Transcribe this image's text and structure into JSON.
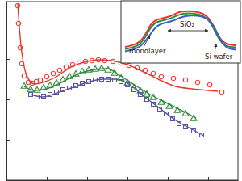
{
  "chart_data": [
    {
      "type": "scatter",
      "xlim": [
        0,
        287
      ],
      "ylim": [
        0,
        221
      ],
      "xticks": [
        0,
        50,
        100,
        150,
        200,
        250
      ],
      "yticks": [
        0,
        50,
        100,
        150,
        200
      ],
      "tick_labels": false,
      "series": [
        {
          "type": "scatter",
          "color": "#e8362d",
          "marker": "circle",
          "x": [
            14,
            15,
            17,
            19,
            22,
            27,
            32,
            37,
            42,
            50,
            58,
            66,
            74,
            82,
            90,
            98,
            106,
            114,
            122,
            132,
            142,
            152,
            162,
            172,
            182,
            192,
            207,
            222,
            237,
            252,
            267
          ],
          "values": [
            216,
            194,
            164,
            144,
            129,
            121,
            120,
            122,
            124,
            128,
            132,
            136,
            140,
            143,
            145,
            147,
            148,
            149,
            148,
            147,
            145,
            142,
            139,
            136,
            132,
            128,
            126,
            124,
            121,
            118,
            109
          ]
        },
        {
          "type": "line",
          "color": "#e8362d",
          "line_style": "solid",
          "x": [
            14,
            16,
            19,
            23,
            28,
            35,
            45,
            60,
            80,
            100,
            115,
            130,
            150,
            170,
            190,
            210,
            230,
            250,
            262
          ],
          "values": [
            218,
            190,
            158,
            136,
            124,
            119,
            121,
            127,
            140,
            147,
            149,
            148,
            143,
            134,
            124,
            116,
            113,
            111,
            110
          ]
        },
        {
          "type": "scatter",
          "color": "#2e8b3a",
          "marker": "triangle",
          "x": [
            22,
            30,
            38,
            46,
            54,
            62,
            70,
            78,
            86,
            94,
            102,
            110,
            118,
            126,
            134,
            142,
            150,
            158,
            166,
            174,
            182,
            192,
            202,
            212,
            222,
            232
          ],
          "values": [
            116,
            112,
            111,
            114,
            117,
            120,
            124,
            128,
            131,
            134,
            136,
            137,
            138,
            136,
            132,
            126,
            120,
            114,
            110,
            106,
            102,
            96,
            91,
            86,
            82,
            76
          ]
        },
        {
          "type": "line",
          "color": "#2e8b3a",
          "line_style": "solid",
          "x": [
            22,
            35,
            50,
            70,
            90,
            110,
            125,
            140,
            160,
            180,
            200,
            220,
            235
          ],
          "values": [
            116,
            111,
            113,
            122,
            132,
            137,
            138,
            130,
            117,
            105,
            95,
            85,
            77
          ]
        },
        {
          "type": "scatter",
          "color": "#5a52a5",
          "marker": "square",
          "x": [
            30,
            38,
            46,
            54,
            62,
            70,
            78,
            86,
            94,
            102,
            110,
            118,
            126,
            134,
            142,
            150,
            158,
            166,
            174,
            182,
            190,
            198,
            206,
            214,
            222,
            232,
            242
          ],
          "values": [
            106,
            103,
            104,
            106,
            109,
            112,
            114,
            117,
            120,
            122,
            124,
            125,
            125,
            124,
            122,
            118,
            112,
            106,
            100,
            94,
            88,
            82,
            76,
            70,
            66,
            61,
            56
          ]
        },
        {
          "type": "line",
          "color": "#5a52a5",
          "line_style": "solid",
          "x": [
            30,
            45,
            60,
            80,
            100,
            120,
            135,
            150,
            170,
            190,
            210,
            230,
            245
          ],
          "values": [
            106,
            103,
            107,
            114,
            121,
            125,
            125,
            120,
            104,
            89,
            74,
            63,
            55
          ]
        }
      ]
    },
    {
      "type": "line",
      "xlim": [
        0,
        10
      ],
      "ylim": [
        0,
        10
      ],
      "xticks": [],
      "yticks": [],
      "tick_labels": false,
      "annotations": [
        "monolayer",
        "SiO₂",
        "Si wafer"
      ],
      "series": [
        {
          "color": "#e8362d",
          "x": [
            0,
            1.5,
            2.2,
            2.8,
            4,
            4.8,
            5.5,
            7.5,
            8.3,
            9,
            10
          ],
          "values": [
            2.2,
            2.8,
            6.2,
            7.3,
            7.6,
            8.6,
            8.8,
            8.5,
            4.2,
            2.6,
            2.5
          ]
        },
        {
          "color": "#2e8b3a",
          "x": [
            0,
            1.5,
            2.2,
            2.8,
            4,
            4.8,
            5.5,
            7.5,
            8.3,
            9,
            10
          ],
          "values": [
            1.8,
            2.4,
            5.6,
            6.9,
            7.2,
            8.1,
            8.4,
            8.1,
            3.8,
            2.2,
            2.1
          ]
        },
        {
          "color": "#3a5fcd",
          "x": [
            0,
            1.5,
            2.4,
            3,
            4.2,
            5,
            5.7,
            7.7,
            8.5,
            9.2,
            10
          ],
          "values": [
            1.4,
            2,
            5,
            6.4,
            6.8,
            7.6,
            8,
            7.8,
            3.4,
            1.8,
            1.7
          ]
        }
      ]
    }
  ]
}
